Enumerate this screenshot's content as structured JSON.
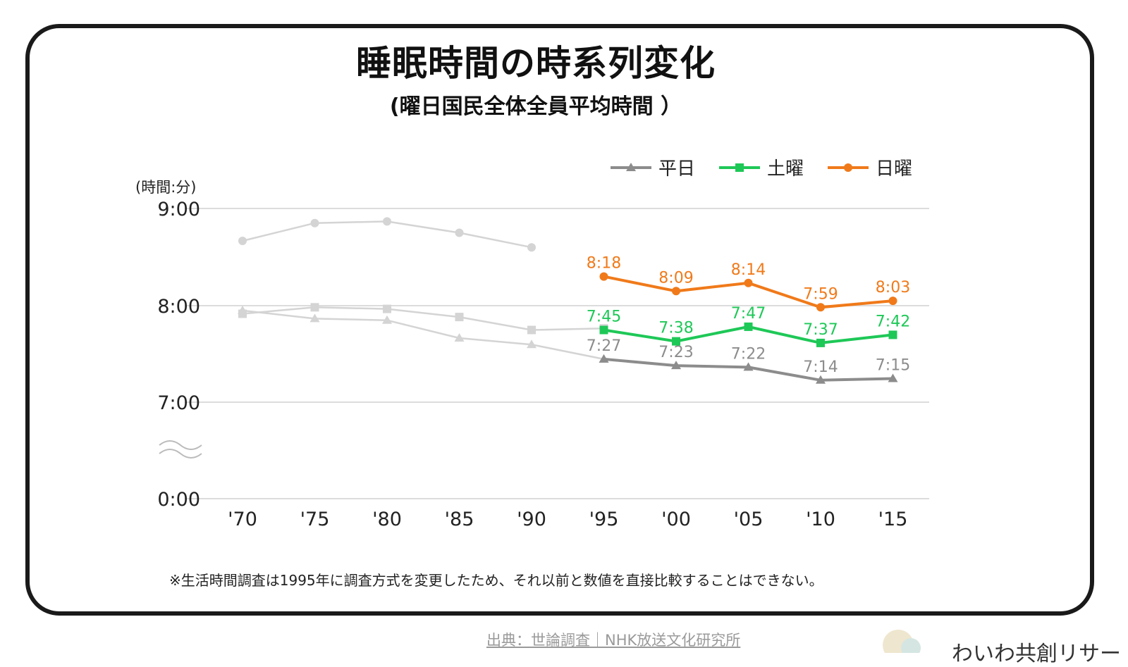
{
  "title": "睡眠時間の時系列変化",
  "subtitle": "(曜日国民全体全員平均時間 ）",
  "footnote": "※生活時間調査は1995年に調査方式を変更したため、それ以前と数値を直接比較することはできない。",
  "source": "出典：世論調査｜NHK放送文化研究所",
  "brand": "わいわ共創リサー",
  "colors": {
    "weekday": "#8c8c8c",
    "saturday": "#1ec857",
    "sunday": "#f07a1a",
    "old_series": "#d4d4d4"
  },
  "chart_data": {
    "type": "line",
    "y_unit_label": "(時間:分)",
    "y_ticks": [
      "9:00",
      "8:00",
      "7:00",
      "0:00"
    ],
    "y_axis_break": true,
    "categories": [
      "'70",
      "'75",
      "'80",
      "'85",
      "'90",
      "'95",
      "'00",
      "'05",
      "'10",
      "'15"
    ],
    "legend_position": "top-right",
    "series": [
      {
        "name": "平日",
        "marker": "triangle",
        "color": "#8c8c8c",
        "values": [
          null,
          null,
          null,
          null,
          null,
          "7:27",
          "7:23",
          "7:22",
          "7:14",
          "7:15"
        ],
        "labels": [
          "",
          "",
          "",
          "",
          "",
          "7:27",
          "7:23",
          "7:22",
          "7:14",
          "7:15"
        ]
      },
      {
        "name": "土曜",
        "marker": "square",
        "color": "#1ec857",
        "values": [
          null,
          null,
          null,
          null,
          null,
          "7:45",
          "7:38",
          "7:47",
          "7:37",
          "7:42"
        ],
        "labels": [
          "",
          "",
          "",
          "",
          "",
          "7:45",
          "7:38",
          "7:47",
          "7:37",
          "7:42"
        ]
      },
      {
        "name": "日曜",
        "marker": "circle",
        "color": "#f07a1a",
        "values": [
          null,
          null,
          null,
          null,
          null,
          "8:18",
          "8:09",
          "8:14",
          "7:59",
          "8:03"
        ],
        "labels": [
          "",
          "",
          "",
          "",
          "",
          "8:18",
          "8:09",
          "8:14",
          "7:59",
          "8:03"
        ]
      }
    ],
    "pre1995_series": [
      {
        "marker": "triangle",
        "values": [
          "7:57",
          "7:52",
          "7:51",
          "7:40",
          "7:36",
          "7:27"
        ]
      },
      {
        "marker": "square",
        "values": [
          "7:55",
          "7:59",
          "7:58",
          "7:53",
          "7:45",
          "7:46"
        ]
      },
      {
        "marker": "circle",
        "values": [
          "8:40",
          "8:51",
          "8:52",
          "8:45",
          "8:36",
          null
        ]
      }
    ],
    "grid": true
  }
}
